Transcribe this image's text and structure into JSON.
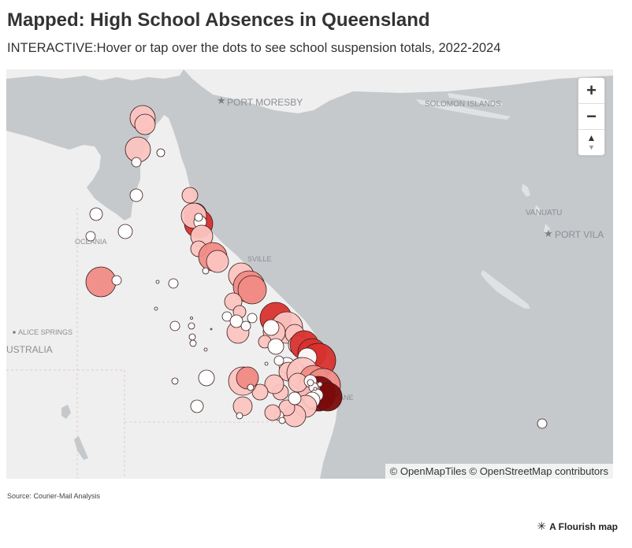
{
  "header": {
    "title": "Mapped: High School Absences in Queensland",
    "subtitle": "INTERACTIVE:Hover or tap over the dots to see school suspension totals, 2022-2024"
  },
  "map": {
    "place_labels": {
      "port_moresby": "PORT MORESBY",
      "solomon_islands": "SOLOMON ISLANDS",
      "vanuatu": "VANUATU",
      "port_vila": "PORT VILA",
      "oceania": "OCEANIA",
      "alice_springs": "ALICE SPRINGS",
      "australia": "USTRALIA",
      "townsville": "SVILLE",
      "brisbane": "ANE"
    },
    "controls": {
      "zoom_in": "+",
      "zoom_out": "−",
      "compass": "▲"
    },
    "attribution": "© OpenMapTiles © OpenStreetMap contributors",
    "colors": {
      "land": "#efefef",
      "sea": "#c5c9cc",
      "dot_light": "#fbc4c0",
      "dot_mid": "#f08b85",
      "dot_dark": "#d8322e",
      "dot_darkest": "#7a0c0c"
    }
  },
  "footer": {
    "source": "Source: Courier-Mail Analysis",
    "credit": "A Flourish map",
    "credit_icon": "flourish-star-icon"
  }
}
